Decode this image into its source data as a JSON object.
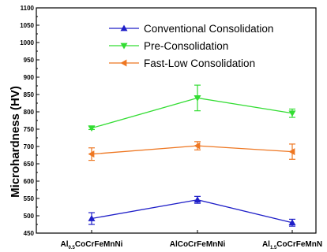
{
  "chart_data": {
    "type": "line",
    "title": "",
    "xlabel": "",
    "ylabel": "Microhardness (HV)",
    "categories": [
      {
        "main1": "Al",
        "sub": "0.5",
        "main2": "CoCrFeMnNi"
      },
      {
        "main1": "AlCoCrFeMnNi",
        "sub": "",
        "main2": ""
      },
      {
        "main1": "Al",
        "sub": "1.5",
        "main2": "CoCrFeMnN"
      }
    ],
    "ylim": [
      450,
      1100
    ],
    "yticks": [
      450,
      500,
      550,
      600,
      650,
      700,
      750,
      800,
      850,
      900,
      950,
      1000,
      1050,
      1100
    ],
    "legend_position": "top-right",
    "grid": false,
    "series": [
      {
        "name": "Conventional Consolidation",
        "color": "#1f1fc8",
        "marker": "triangle-up",
        "values": [
          492,
          546,
          480
        ],
        "errors": [
          17,
          10,
          10
        ]
      },
      {
        "name": "Pre-Consolidation",
        "color": "#33dd33",
        "marker": "triangle-down",
        "values": [
          753,
          840,
          796
        ],
        "errors": [
          4,
          37,
          12
        ]
      },
      {
        "name": "Fast-Low Consolidation",
        "color": "#ee7722",
        "marker": "triangle-left",
        "values": [
          678,
          702,
          685
        ],
        "errors": [
          18,
          12,
          22
        ]
      }
    ]
  }
}
